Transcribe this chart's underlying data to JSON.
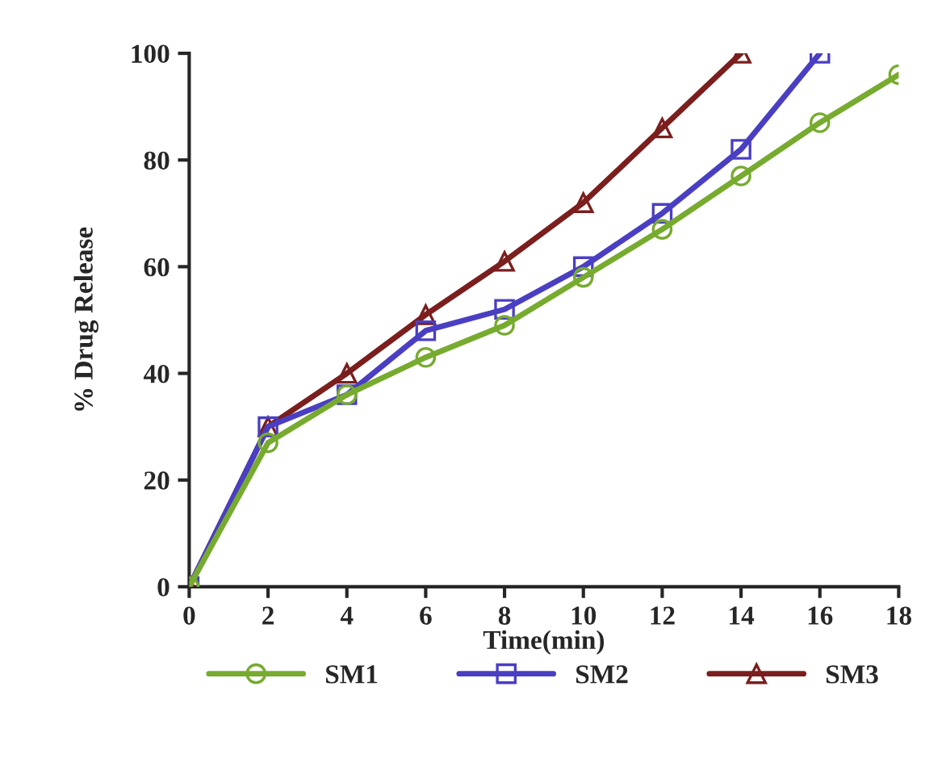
{
  "chart_data": {
    "type": "line",
    "xlabel": "Time(min)",
    "ylabel": "% Drug Release",
    "xlim": [
      0,
      18
    ],
    "xticks": [
      0,
      2,
      4,
      6,
      8,
      10,
      12,
      14,
      16,
      18
    ],
    "ylim": [
      0,
      100
    ],
    "yticks": [
      0,
      20,
      40,
      60,
      80,
      100
    ],
    "grid": false,
    "legend": "bottom",
    "series": [
      {
        "name": "SM1",
        "color": "#77ab2f",
        "marker": "circle",
        "x": [
          0,
          2,
          4,
          6,
          8,
          10,
          12,
          14,
          16,
          18
        ],
        "values": [
          0,
          27,
          36,
          43,
          49,
          58,
          67,
          77,
          87,
          96
        ]
      },
      {
        "name": "SM2",
        "color": "#4a3fc2",
        "marker": "square",
        "x": [
          0,
          2,
          4,
          6,
          8,
          10,
          12,
          14,
          16
        ],
        "values": [
          0,
          30,
          36,
          48,
          52,
          60,
          70,
          82,
          100
        ]
      },
      {
        "name": "SM3",
        "color": "#7b1e1e",
        "marker": "triangle",
        "x": [
          0,
          2,
          4,
          6,
          8,
          10,
          12,
          14
        ],
        "values": [
          0,
          30,
          40,
          51,
          61,
          72,
          86,
          100
        ]
      }
    ]
  }
}
